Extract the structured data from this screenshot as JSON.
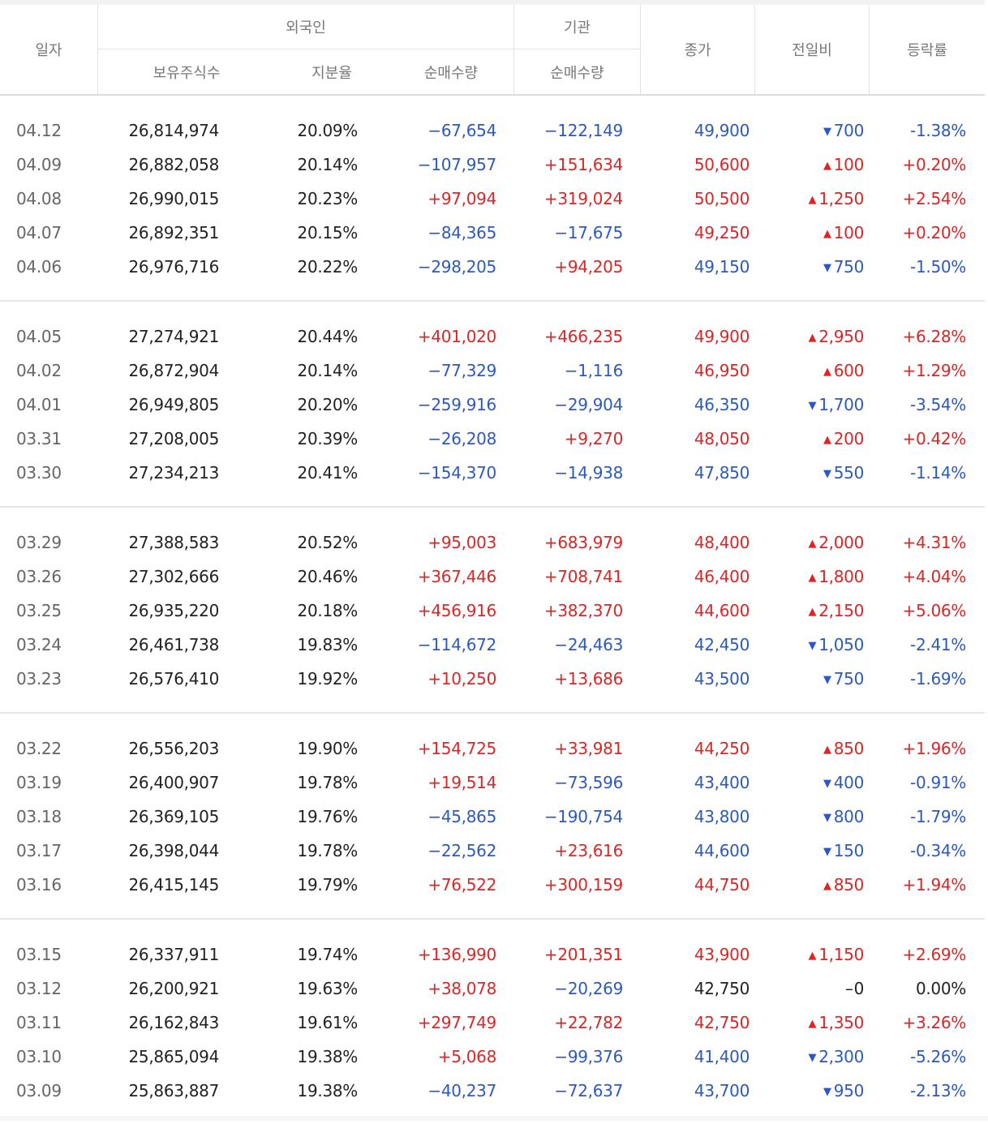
{
  "header": {
    "date": "일자",
    "foreign": "외국인",
    "institution": "기관",
    "holding": "보유주식수",
    "ratio": "지분율",
    "foreign_net": "순매수량",
    "inst_net": "순매수량",
    "close": "종가",
    "change": "전일비",
    "pct": "등락률"
  },
  "colors": {
    "up": "#e02424",
    "down": "#2b59c3",
    "flat": "#222222"
  },
  "groups": [
    [
      {
        "date": "04.12",
        "holding": "26,814,974",
        "ratio": "20.09%",
        "fnet": "−67,654",
        "fdir": "down",
        "inet": "−122,149",
        "idir": "down",
        "close": "49,900",
        "cdir": "down",
        "chg": "700",
        "chgdir": "down",
        "pct": "-1.38%"
      },
      {
        "date": "04.09",
        "holding": "26,882,058",
        "ratio": "20.14%",
        "fnet": "−107,957",
        "fdir": "down",
        "inet": "+151,634",
        "idir": "up",
        "close": "50,600",
        "cdir": "up",
        "chg": "100",
        "chgdir": "up",
        "pct": "+0.20%"
      },
      {
        "date": "04.08",
        "holding": "26,990,015",
        "ratio": "20.23%",
        "fnet": "+97,094",
        "fdir": "up",
        "inet": "+319,024",
        "idir": "up",
        "close": "50,500",
        "cdir": "up",
        "chg": "1,250",
        "chgdir": "up",
        "pct": "+2.54%"
      },
      {
        "date": "04.07",
        "holding": "26,892,351",
        "ratio": "20.15%",
        "fnet": "−84,365",
        "fdir": "down",
        "inet": "−17,675",
        "idir": "down",
        "close": "49,250",
        "cdir": "up",
        "chg": "100",
        "chgdir": "up",
        "pct": "+0.20%"
      },
      {
        "date": "04.06",
        "holding": "26,976,716",
        "ratio": "20.22%",
        "fnet": "−298,205",
        "fdir": "down",
        "inet": "+94,205",
        "idir": "up",
        "close": "49,150",
        "cdir": "down",
        "chg": "750",
        "chgdir": "down",
        "pct": "-1.50%"
      }
    ],
    [
      {
        "date": "04.05",
        "holding": "27,274,921",
        "ratio": "20.44%",
        "fnet": "+401,020",
        "fdir": "up",
        "inet": "+466,235",
        "idir": "up",
        "close": "49,900",
        "cdir": "up",
        "chg": "2,950",
        "chgdir": "up",
        "pct": "+6.28%"
      },
      {
        "date": "04.02",
        "holding": "26,872,904",
        "ratio": "20.14%",
        "fnet": "−77,329",
        "fdir": "down",
        "inet": "−1,116",
        "idir": "down",
        "close": "46,950",
        "cdir": "up",
        "chg": "600",
        "chgdir": "up",
        "pct": "+1.29%"
      },
      {
        "date": "04.01",
        "holding": "26,949,805",
        "ratio": "20.20%",
        "fnet": "−259,916",
        "fdir": "down",
        "inet": "−29,904",
        "idir": "down",
        "close": "46,350",
        "cdir": "down",
        "chg": "1,700",
        "chgdir": "down",
        "pct": "-3.54%"
      },
      {
        "date": "03.31",
        "holding": "27,208,005",
        "ratio": "20.39%",
        "fnet": "−26,208",
        "fdir": "down",
        "inet": "+9,270",
        "idir": "up",
        "close": "48,050",
        "cdir": "up",
        "chg": "200",
        "chgdir": "up",
        "pct": "+0.42%"
      },
      {
        "date": "03.30",
        "holding": "27,234,213",
        "ratio": "20.41%",
        "fnet": "−154,370",
        "fdir": "down",
        "inet": "−14,938",
        "idir": "down",
        "close": "47,850",
        "cdir": "down",
        "chg": "550",
        "chgdir": "down",
        "pct": "-1.14%"
      }
    ],
    [
      {
        "date": "03.29",
        "holding": "27,388,583",
        "ratio": "20.52%",
        "fnet": "+95,003",
        "fdir": "up",
        "inet": "+683,979",
        "idir": "up",
        "close": "48,400",
        "cdir": "up",
        "chg": "2,000",
        "chgdir": "up",
        "pct": "+4.31%"
      },
      {
        "date": "03.26",
        "holding": "27,302,666",
        "ratio": "20.46%",
        "fnet": "+367,446",
        "fdir": "up",
        "inet": "+708,741",
        "idir": "up",
        "close": "46,400",
        "cdir": "up",
        "chg": "1,800",
        "chgdir": "up",
        "pct": "+4.04%"
      },
      {
        "date": "03.25",
        "holding": "26,935,220",
        "ratio": "20.18%",
        "fnet": "+456,916",
        "fdir": "up",
        "inet": "+382,370",
        "idir": "up",
        "close": "44,600",
        "cdir": "up",
        "chg": "2,150",
        "chgdir": "up",
        "pct": "+5.06%"
      },
      {
        "date": "03.24",
        "holding": "26,461,738",
        "ratio": "19.83%",
        "fnet": "−114,672",
        "fdir": "down",
        "inet": "−24,463",
        "idir": "down",
        "close": "42,450",
        "cdir": "down",
        "chg": "1,050",
        "chgdir": "down",
        "pct": "-2.41%"
      },
      {
        "date": "03.23",
        "holding": "26,576,410",
        "ratio": "19.92%",
        "fnet": "+10,250",
        "fdir": "up",
        "inet": "+13,686",
        "idir": "up",
        "close": "43,500",
        "cdir": "down",
        "chg": "750",
        "chgdir": "down",
        "pct": "-1.69%"
      }
    ],
    [
      {
        "date": "03.22",
        "holding": "26,556,203",
        "ratio": "19.90%",
        "fnet": "+154,725",
        "fdir": "up",
        "inet": "+33,981",
        "idir": "up",
        "close": "44,250",
        "cdir": "up",
        "chg": "850",
        "chgdir": "up",
        "pct": "+1.96%"
      },
      {
        "date": "03.19",
        "holding": "26,400,907",
        "ratio": "19.78%",
        "fnet": "+19,514",
        "fdir": "up",
        "inet": "−73,596",
        "idir": "down",
        "close": "43,400",
        "cdir": "down",
        "chg": "400",
        "chgdir": "down",
        "pct": "-0.91%"
      },
      {
        "date": "03.18",
        "holding": "26,369,105",
        "ratio": "19.76%",
        "fnet": "−45,865",
        "fdir": "down",
        "inet": "−190,754",
        "idir": "down",
        "close": "43,800",
        "cdir": "down",
        "chg": "800",
        "chgdir": "down",
        "pct": "-1.79%"
      },
      {
        "date": "03.17",
        "holding": "26,398,044",
        "ratio": "19.78%",
        "fnet": "−22,562",
        "fdir": "down",
        "inet": "+23,616",
        "idir": "up",
        "close": "44,600",
        "cdir": "down",
        "chg": "150",
        "chgdir": "down",
        "pct": "-0.34%"
      },
      {
        "date": "03.16",
        "holding": "26,415,145",
        "ratio": "19.79%",
        "fnet": "+76,522",
        "fdir": "up",
        "inet": "+300,159",
        "idir": "up",
        "close": "44,750",
        "cdir": "up",
        "chg": "850",
        "chgdir": "up",
        "pct": "+1.94%"
      }
    ],
    [
      {
        "date": "03.15",
        "holding": "26,337,911",
        "ratio": "19.74%",
        "fnet": "+136,990",
        "fdir": "up",
        "inet": "+201,351",
        "idir": "up",
        "close": "43,900",
        "cdir": "up",
        "chg": "1,150",
        "chgdir": "up",
        "pct": "+2.69%"
      },
      {
        "date": "03.12",
        "holding": "26,200,921",
        "ratio": "19.63%",
        "fnet": "+38,078",
        "fdir": "up",
        "inet": "−20,269",
        "idir": "down",
        "close": "42,750",
        "cdir": "flat",
        "chg": "0",
        "chgdir": "flat",
        "pct": "0.00%"
      },
      {
        "date": "03.11",
        "holding": "26,162,843",
        "ratio": "19.61%",
        "fnet": "+297,749",
        "fdir": "up",
        "inet": "+22,782",
        "idir": "up",
        "close": "42,750",
        "cdir": "up",
        "chg": "1,350",
        "chgdir": "up",
        "pct": "+3.26%"
      },
      {
        "date": "03.10",
        "holding": "25,865,094",
        "ratio": "19.38%",
        "fnet": "+5,068",
        "fdir": "up",
        "inet": "−99,376",
        "idir": "down",
        "close": "41,400",
        "cdir": "down",
        "chg": "2,300",
        "chgdir": "down",
        "pct": "-5.26%"
      },
      {
        "date": "03.09",
        "holding": "25,863,887",
        "ratio": "19.38%",
        "fnet": "−40,237",
        "fdir": "down",
        "inet": "−72,637",
        "idir": "down",
        "close": "43,700",
        "cdir": "down",
        "chg": "950",
        "chgdir": "down",
        "pct": "-2.13%"
      }
    ]
  ]
}
